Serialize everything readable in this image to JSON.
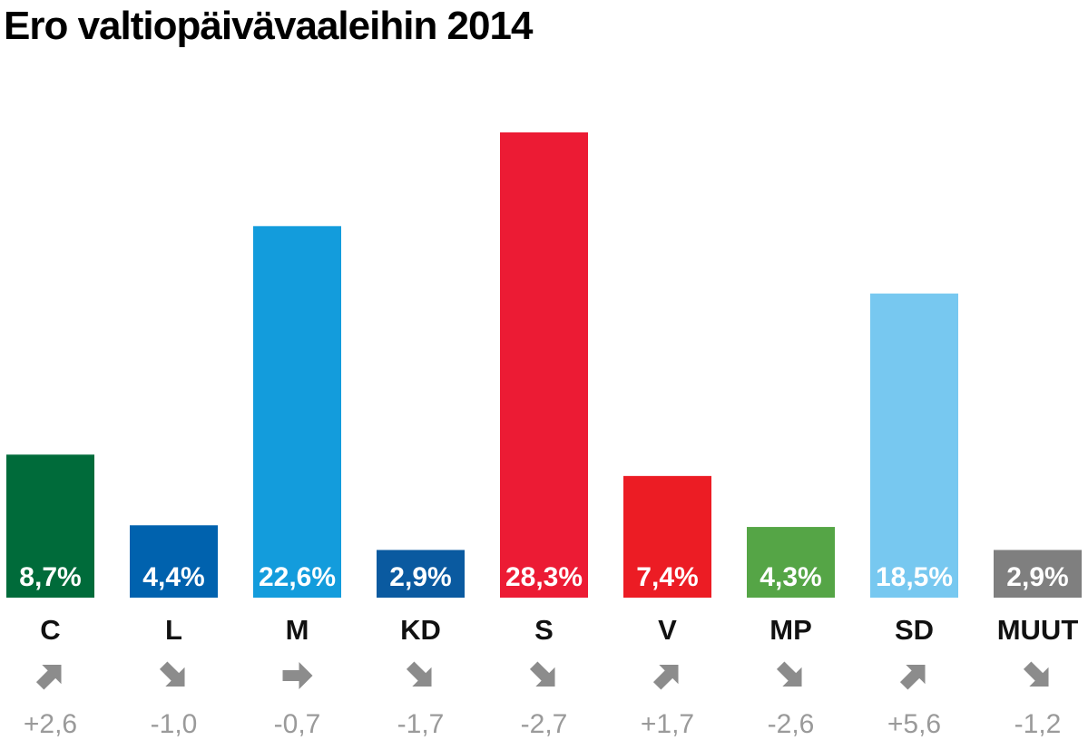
{
  "chart_data": {
    "type": "bar",
    "title": "Ero valtiopäivävaaleihin 2014",
    "categories": [
      "C",
      "L",
      "M",
      "KD",
      "S",
      "V",
      "MP",
      "SD",
      "MUUT"
    ],
    "values": [
      8.7,
      4.4,
      22.6,
      2.9,
      28.3,
      7.4,
      4.3,
      18.5,
      2.9
    ],
    "value_labels": [
      "8,7%",
      "4,4%",
      "22,6%",
      "2,9%",
      "28,3%",
      "7,4%",
      "4,3%",
      "18,5%",
      "2,9%"
    ],
    "changes": [
      2.6,
      -1.0,
      -0.7,
      -1.7,
      -2.7,
      1.7,
      -2.6,
      5.6,
      -1.2
    ],
    "change_labels": [
      "+2,6",
      "-1,0",
      "-0,7",
      "-1,7",
      "-2,7",
      "+1,7",
      "-2,6",
      "+5,6",
      "-1,2"
    ],
    "change_arrows": [
      "arrow-up-right",
      "arrow-down-right",
      "arrow-right",
      "arrow-down-right",
      "arrow-down-right",
      "arrow-up-right",
      "arrow-down-right",
      "arrow-up-right",
      "arrow-down-right"
    ],
    "colors": [
      "#006b3a",
      "#0062ae",
      "#139cdc",
      "#0a5aa0",
      "#ec1b34",
      "#ec1c24",
      "#55a546",
      "#77c8f0",
      "#7f7f7f"
    ],
    "ylim": [
      0,
      28.3
    ],
    "grid": false,
    "legend": "none"
  }
}
